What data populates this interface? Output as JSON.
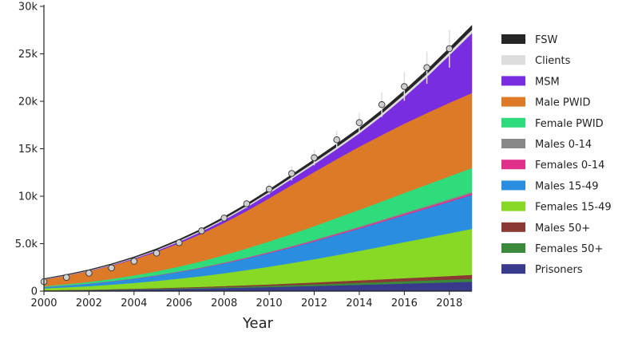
{
  "chart_data": {
    "type": "area",
    "stacked": true,
    "title": "",
    "xlabel": "Year",
    "ylabel": "",
    "xlim": [
      2000,
      2019
    ],
    "ylim": [
      0,
      30000
    ],
    "x_ticks": [
      2000,
      2002,
      2004,
      2006,
      2008,
      2010,
      2012,
      2014,
      2016,
      2018
    ],
    "x_tick_labels": [
      "2000",
      "2002",
      "2004",
      "2006",
      "2008",
      "2010",
      "2012",
      "2014",
      "2016",
      "2018"
    ],
    "y_ticks": [
      0,
      5000,
      10000,
      15000,
      20000,
      25000,
      30000
    ],
    "y_tick_labels": [
      "0",
      "5.0k",
      "10k",
      "15k",
      "20k",
      "25k",
      "30k"
    ],
    "grid": false,
    "legend_position": "right",
    "x": [
      2000,
      2001,
      2002,
      2003,
      2004,
      2005,
      2006,
      2007,
      2008,
      2009,
      2010,
      2011,
      2012,
      2013,
      2014,
      2015,
      2016,
      2017,
      2018,
      2019
    ],
    "series": [
      {
        "name": "Prisoners",
        "color": "#3a3a8c",
        "values": [
          60,
          80,
          100,
          130,
          160,
          200,
          240,
          280,
          330,
          380,
          430,
          490,
          550,
          610,
          670,
          730,
          800,
          860,
          930,
          1000
        ]
      },
      {
        "name": "Females 50+",
        "color": "#3a8a3a",
        "values": [
          20,
          25,
          30,
          40,
          50,
          60,
          70,
          85,
          100,
          115,
          130,
          150,
          170,
          190,
          210,
          230,
          250,
          270,
          290,
          310
        ]
      },
      {
        "name": "Males 50+",
        "color": "#8a3a32",
        "values": [
          20,
          25,
          30,
          40,
          50,
          60,
          75,
          90,
          110,
          130,
          150,
          175,
          200,
          230,
          260,
          290,
          320,
          350,
          380,
          410
        ]
      },
      {
        "name": "Females 15-49",
        "color": "#88d826",
        "values": [
          200,
          280,
          370,
          480,
          610,
          760,
          940,
          1130,
          1350,
          1600,
          1870,
          2150,
          2450,
          2770,
          3100,
          3450,
          3800,
          4150,
          4500,
          4850
        ]
      },
      {
        "name": "Males 15-49",
        "color": "#2a8ee0",
        "values": [
          130,
          180,
          250,
          330,
          430,
          550,
          690,
          850,
          1030,
          1220,
          1430,
          1640,
          1870,
          2110,
          2350,
          2590,
          2840,
          3080,
          3320,
          3570
        ]
      },
      {
        "name": "Females 0-14",
        "color": "#e0308a",
        "values": [
          10,
          12,
          15,
          20,
          25,
          30,
          35,
          40,
          50,
          60,
          70,
          80,
          90,
          100,
          110,
          120,
          130,
          140,
          150,
          160
        ]
      },
      {
        "name": "Males 0-14",
        "color": "#888888",
        "values": [
          10,
          12,
          15,
          20,
          25,
          30,
          35,
          40,
          50,
          60,
          70,
          80,
          90,
          100,
          110,
          120,
          130,
          140,
          150,
          160
        ]
      },
      {
        "name": "Female PWID",
        "color": "#2edc7c",
        "values": [
          80,
          120,
          170,
          230,
          310,
          400,
          510,
          640,
          780,
          930,
          1090,
          1260,
          1430,
          1600,
          1760,
          1920,
          2080,
          2230,
          2380,
          2520
        ]
      },
      {
        "name": "Male PWID",
        "color": "#dc7a28",
        "values": [
          700,
          900,
          1130,
          1400,
          1700,
          2050,
          2450,
          2900,
          3400,
          3950,
          4550,
          5150,
          5700,
          6200,
          6650,
          7000,
          7300,
          7550,
          7750,
          7900
        ]
      },
      {
        "name": "MSM",
        "color": "#7a2ce0",
        "values": [
          10,
          20,
          30,
          50,
          80,
          120,
          170,
          230,
          300,
          390,
          500,
          650,
          820,
          1050,
          1400,
          2000,
          2800,
          3800,
          5000,
          6300
        ]
      },
      {
        "name": "Clients",
        "color": "#dcdcdc",
        "values": [
          30,
          40,
          50,
          60,
          75,
          90,
          105,
          120,
          140,
          160,
          180,
          200,
          220,
          240,
          260,
          280,
          300,
          320,
          340,
          360
        ]
      },
      {
        "name": "FSW",
        "color": "#262626",
        "values": [
          50,
          60,
          70,
          80,
          100,
          120,
          140,
          165,
          190,
          215,
          240,
          265,
          290,
          315,
          340,
          365,
          390,
          415,
          440,
          470
        ]
      }
    ],
    "data_points": {
      "x": [
        2000,
        2001,
        2002,
        2003,
        2004,
        2005,
        2006,
        2007,
        2008,
        2009,
        2010,
        2011,
        2012,
        2013,
        2014,
        2015,
        2016,
        2017,
        2018
      ],
      "y": [
        1000,
        1450,
        1900,
        2450,
        3150,
        4000,
        5100,
        6350,
        7700,
        9200,
        10750,
        12400,
        14050,
        15950,
        17750,
        19650,
        21550,
        23550,
        25550
      ],
      "err": [
        0,
        0,
        0,
        0,
        0,
        0,
        0,
        0,
        200,
        450,
        550,
        750,
        800,
        900,
        1050,
        1300,
        1500,
        1700,
        2000
      ]
    }
  }
}
